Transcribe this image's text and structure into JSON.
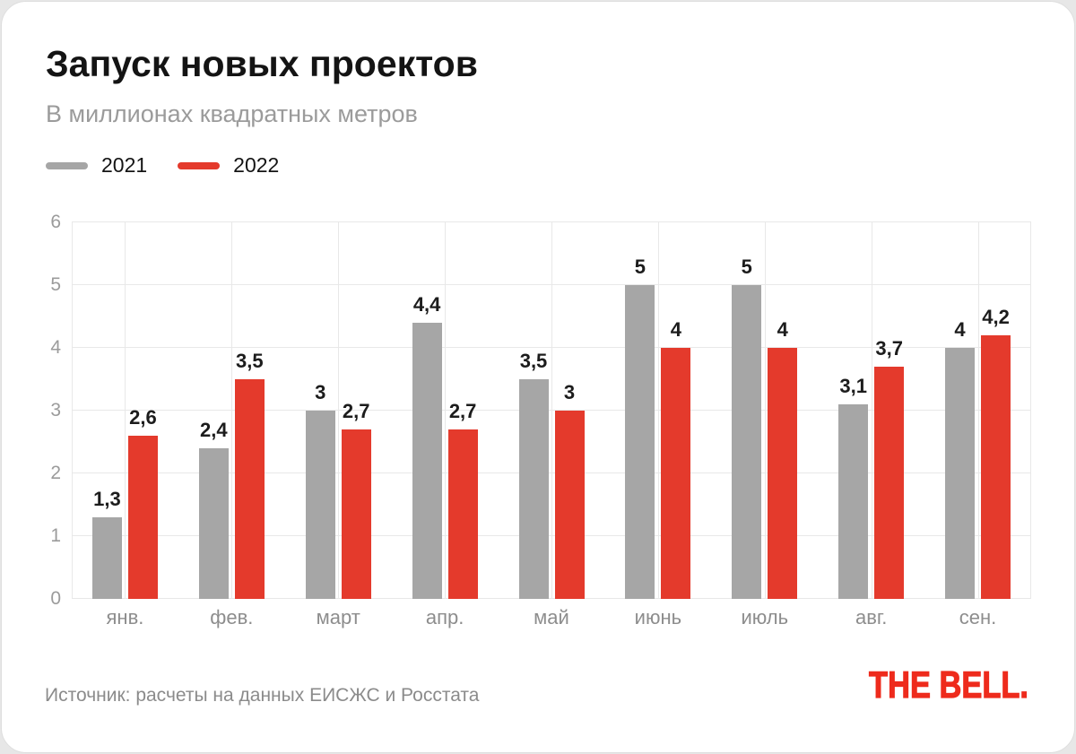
{
  "header": {
    "title": "Запуск новых проектов",
    "subtitle": "В миллионах квадратных метров"
  },
  "legend": [
    {
      "label": "2021",
      "color": "#a6a6a6"
    },
    {
      "label": "2022",
      "color": "#e43a2c"
    }
  ],
  "footer": {
    "source": "Источник: расчеты на данных ЕИСЖС и Росстата",
    "logo": "THE BELL."
  },
  "colors": {
    "bar_2021": "#a6a6a6",
    "bar_2022": "#e43a2c",
    "logo_red": "#ee2b1c",
    "grid": "#e8e8e8"
  },
  "chart_data": {
    "type": "bar",
    "categories": [
      "янв.",
      "фев.",
      "март",
      "апр.",
      "май",
      "июнь",
      "июль",
      "авг.",
      "сен."
    ],
    "series": [
      {
        "name": "2021",
        "values": [
          1.3,
          2.4,
          3,
          4.4,
          3.5,
          5,
          5,
          3.1,
          4
        ],
        "labels": [
          "1,3",
          "2,4",
          "3",
          "4,4",
          "3,5",
          "5",
          "5",
          "3,1",
          "4"
        ]
      },
      {
        "name": "2022",
        "values": [
          2.6,
          3.5,
          2.7,
          2.7,
          3,
          4,
          4,
          3.7,
          4.2
        ],
        "labels": [
          "2,6",
          "3,5",
          "2,7",
          "2,7",
          "3",
          "4",
          "4",
          "3,7",
          "4,2"
        ]
      }
    ],
    "title": "Запуск новых проектов",
    "subtitle": "В миллионах квадратных метров",
    "ylabel": "",
    "xlabel": "",
    "ylim": [
      0,
      6
    ],
    "yticks": [
      0,
      1,
      2,
      3,
      4,
      5,
      6
    ],
    "grid": true,
    "legend_position": "top-left"
  }
}
